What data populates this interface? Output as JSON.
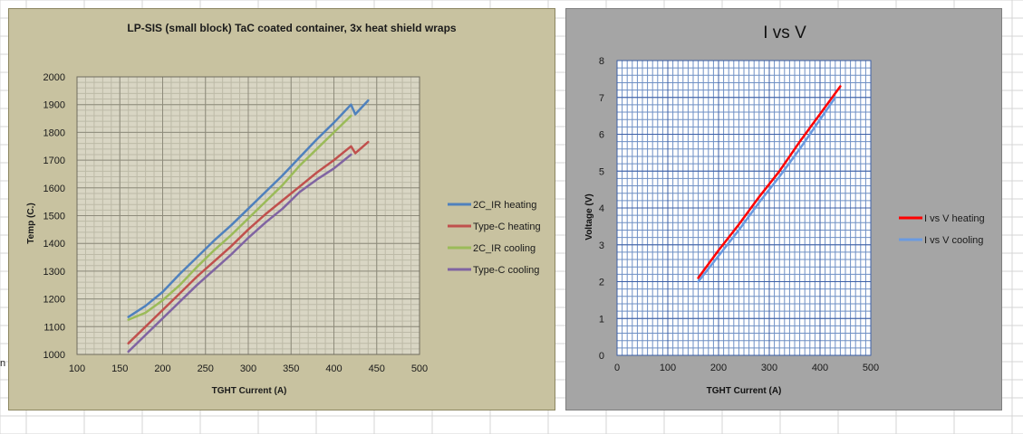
{
  "sheet": {
    "cell_fragment": "n"
  },
  "chart_data": [
    {
      "type": "line",
      "title": "LP-SIS (small block) TaC coated container, 3x heat shield wraps",
      "xlabel": "TGHT  Current (A)",
      "ylabel": "Temp (C.)",
      "xlim": [
        100,
        500
      ],
      "ylim": [
        1000,
        2000
      ],
      "xticks": [
        100,
        150,
        200,
        250,
        300,
        350,
        400,
        450,
        500
      ],
      "yticks": [
        1000,
        1100,
        1200,
        1300,
        1400,
        1500,
        1600,
        1700,
        1800,
        1900,
        2000
      ],
      "grid": true,
      "legend": "right",
      "series": [
        {
          "name": "2C_IR heating",
          "color": "#4f81bd",
          "x": [
            160,
            180,
            200,
            220,
            240,
            260,
            280,
            300,
            320,
            340,
            360,
            380,
            400,
            420,
            425,
            440
          ],
          "y": [
            1135,
            1175,
            1225,
            1290,
            1350,
            1410,
            1465,
            1525,
            1585,
            1645,
            1710,
            1775,
            1835,
            1900,
            1865,
            1915
          ]
        },
        {
          "name": "Type-C heating",
          "color": "#c0504d",
          "x": [
            160,
            180,
            200,
            220,
            240,
            260,
            280,
            300,
            320,
            340,
            360,
            380,
            400,
            420,
            425,
            440
          ],
          "y": [
            1040,
            1100,
            1160,
            1220,
            1280,
            1335,
            1390,
            1450,
            1505,
            1555,
            1605,
            1655,
            1700,
            1750,
            1725,
            1765
          ]
        },
        {
          "name": "2C_IR cooling",
          "color": "#9bbb59",
          "x": [
            160,
            180,
            200,
            220,
            240,
            260,
            280,
            300,
            320,
            340,
            360,
            380,
            400,
            420
          ],
          "y": [
            1125,
            1150,
            1195,
            1250,
            1315,
            1375,
            1430,
            1490,
            1550,
            1610,
            1680,
            1740,
            1800,
            1860
          ]
        },
        {
          "name": "Type-C cooling",
          "color": "#8064a2",
          "x": [
            160,
            180,
            200,
            220,
            240,
            260,
            280,
            300,
            320,
            340,
            360,
            380,
            400,
            420
          ],
          "y": [
            1010,
            1070,
            1130,
            1190,
            1250,
            1305,
            1360,
            1420,
            1475,
            1525,
            1585,
            1630,
            1670,
            1720
          ]
        }
      ]
    },
    {
      "type": "line",
      "title": "I vs V",
      "xlabel": "TGHT   Current (A)",
      "ylabel": "Voltage  (V)",
      "xlim": [
        0,
        500
      ],
      "ylim": [
        0,
        8
      ],
      "xticks": [
        0,
        100,
        200,
        300,
        400,
        500
      ],
      "yticks": [
        0,
        1,
        2,
        3,
        4,
        5,
        6,
        7,
        8
      ],
      "grid": true,
      "legend": "right",
      "series": [
        {
          "name": "I vs V heating",
          "color": "#ff0000",
          "x": [
            160,
            200,
            240,
            280,
            320,
            360,
            400,
            440
          ],
          "y": [
            2.1,
            2.85,
            3.55,
            4.3,
            5.0,
            5.8,
            6.55,
            7.3
          ]
        },
        {
          "name": "I vs V cooling",
          "color": "#6a9ae0",
          "x": [
            160,
            200,
            240,
            280,
            320,
            360,
            400,
            430
          ],
          "y": [
            2.0,
            2.7,
            3.4,
            4.15,
            4.85,
            5.6,
            6.4,
            7.0
          ]
        }
      ]
    }
  ]
}
